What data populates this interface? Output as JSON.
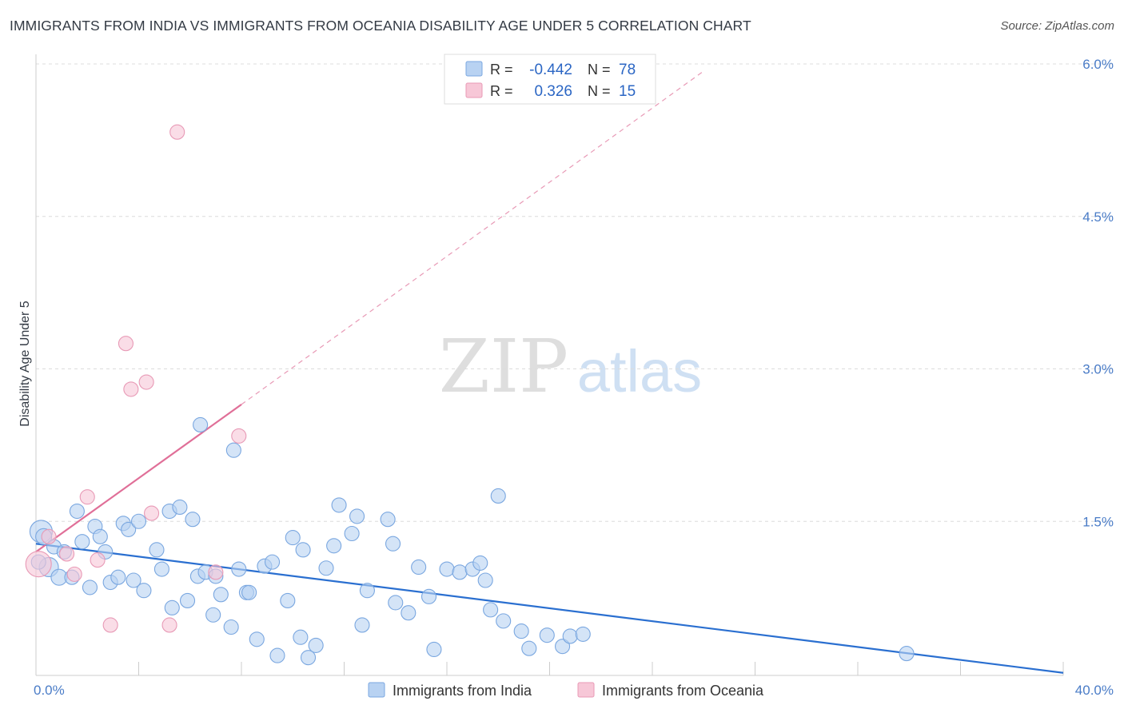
{
  "title": "IMMIGRANTS FROM INDIA VS IMMIGRANTS FROM OCEANIA DISABILITY AGE UNDER 5 CORRELATION CHART",
  "source": "Source: ZipAtlas.com",
  "watermark": {
    "zip": "ZIP",
    "atlas": "atlas"
  },
  "chart_data": {
    "type": "scatter",
    "ylabel": "Disability Age Under 5",
    "xlim": [
      0,
      40
    ],
    "ylim": [
      0,
      6.0
    ],
    "x_tick_labels": [
      {
        "value": 0,
        "label": "0.0%"
      },
      {
        "value": 40,
        "label": "40.0%"
      }
    ],
    "y_tick_labels": [
      {
        "value": 1.5,
        "label": "1.5%"
      },
      {
        "value": 3.0,
        "label": "3.0%"
      },
      {
        "value": 4.5,
        "label": "4.5%"
      },
      {
        "value": 6.0,
        "label": "6.0%"
      }
    ],
    "grid": "horizontal dashed",
    "legend_position": "top-center",
    "series": [
      {
        "name": "Immigrants from India",
        "color": "#7aa7e0",
        "fill": "#b8d2f2",
        "r_label": "R =",
        "r_value": "-0.442",
        "n_label": "N =",
        "n_value": "78",
        "trend": {
          "x0": 0,
          "y0": 1.28,
          "x1": 40,
          "y1": 0.01,
          "color": "#2a6fd0"
        },
        "points": [
          [
            0.2,
            1.4,
            14
          ],
          [
            0.3,
            1.35,
            10
          ],
          [
            0.5,
            1.05,
            12
          ],
          [
            0.7,
            1.25,
            9
          ],
          [
            0.9,
            0.95,
            10
          ],
          [
            1.1,
            1.2,
            9
          ],
          [
            1.4,
            0.95,
            9
          ],
          [
            1.6,
            1.6,
            9
          ],
          [
            1.8,
            1.3,
            9
          ],
          [
            2.1,
            0.85,
            9
          ],
          [
            2.3,
            1.45,
            9
          ],
          [
            2.5,
            1.35,
            9
          ],
          [
            2.7,
            1.2,
            9
          ],
          [
            2.9,
            0.9,
            9
          ],
          [
            3.2,
            0.95,
            9
          ],
          [
            3.4,
            1.48,
            9
          ],
          [
            3.6,
            1.42,
            9
          ],
          [
            3.8,
            0.92,
            9
          ],
          [
            4.0,
            1.5,
            9
          ],
          [
            4.2,
            0.82,
            9
          ],
          [
            4.7,
            1.22,
            9
          ],
          [
            4.9,
            1.03,
            9
          ],
          [
            5.2,
            1.6,
            9
          ],
          [
            5.3,
            0.65,
            9
          ],
          [
            5.6,
            1.64,
            9
          ],
          [
            5.9,
            0.72,
            9
          ],
          [
            6.1,
            1.52,
            9
          ],
          [
            6.3,
            0.96,
            9
          ],
          [
            6.4,
            2.45,
            9
          ],
          [
            6.6,
            1.0,
            9
          ],
          [
            6.9,
            0.58,
            9
          ],
          [
            7.0,
            0.96,
            9
          ],
          [
            7.2,
            0.78,
            9
          ],
          [
            7.6,
            0.46,
            9
          ],
          [
            7.7,
            2.2,
            9
          ],
          [
            7.9,
            1.03,
            9
          ],
          [
            8.2,
            0.8,
            9
          ],
          [
            8.3,
            0.8,
            9
          ],
          [
            8.6,
            0.34,
            9
          ],
          [
            8.9,
            1.06,
            9
          ],
          [
            9.2,
            1.1,
            9
          ],
          [
            9.4,
            0.18,
            9
          ],
          [
            9.8,
            0.72,
            9
          ],
          [
            10.0,
            1.34,
            9
          ],
          [
            10.3,
            0.36,
            9
          ],
          [
            10.4,
            1.22,
            9
          ],
          [
            10.6,
            0.16,
            9
          ],
          [
            10.9,
            0.28,
            9
          ],
          [
            11.3,
            1.04,
            9
          ],
          [
            11.6,
            1.26,
            9
          ],
          [
            11.8,
            1.66,
            9
          ],
          [
            12.3,
            1.38,
            9
          ],
          [
            12.5,
            1.55,
            9
          ],
          [
            12.7,
            0.48,
            9
          ],
          [
            12.9,
            0.82,
            9
          ],
          [
            13.7,
            1.52,
            9
          ],
          [
            13.9,
            1.28,
            9
          ],
          [
            14.0,
            0.7,
            9
          ],
          [
            14.5,
            0.6,
            9
          ],
          [
            14.9,
            1.05,
            9
          ],
          [
            15.3,
            0.76,
            9
          ],
          [
            15.5,
            0.24,
            9
          ],
          [
            16.0,
            1.03,
            9
          ],
          [
            16.5,
            1.0,
            9
          ],
          [
            17.0,
            1.03,
            9
          ],
          [
            17.3,
            1.09,
            9
          ],
          [
            17.5,
            0.92,
            9
          ],
          [
            17.7,
            0.63,
            9
          ],
          [
            18.0,
            1.75,
            9
          ],
          [
            18.2,
            0.52,
            9
          ],
          [
            18.9,
            0.42,
            9
          ],
          [
            19.2,
            0.25,
            9
          ],
          [
            19.9,
            0.38,
            9
          ],
          [
            20.5,
            0.27,
            9
          ],
          [
            20.8,
            0.37,
            9
          ],
          [
            21.3,
            0.39,
            9
          ],
          [
            33.9,
            0.2,
            9
          ],
          [
            0.1,
            1.1,
            9
          ]
        ]
      },
      {
        "name": "Immigrants from Oceania",
        "color": "#e89ab6",
        "fill": "#f7c7d7",
        "r_label": "R =",
        "r_value": "0.326",
        "n_label": "N =",
        "n_value": "15",
        "trend": {
          "x0": 0,
          "y0": 1.2,
          "x1": 8.0,
          "y1": 2.65,
          "color": "#e06f98"
        },
        "trend_extension": {
          "x0": 8.0,
          "y0": 2.65,
          "x1": 26.0,
          "y1": 5.93
        },
        "points": [
          [
            0.1,
            1.08,
            16
          ],
          [
            0.5,
            1.35,
            9
          ],
          [
            1.2,
            1.18,
            9
          ],
          [
            1.5,
            0.98,
            9
          ],
          [
            2.0,
            1.74,
            9
          ],
          [
            2.4,
            1.12,
            9
          ],
          [
            2.9,
            0.48,
            9
          ],
          [
            3.5,
            3.25,
            9
          ],
          [
            3.7,
            2.8,
            9
          ],
          [
            4.3,
            2.87,
            9
          ],
          [
            4.5,
            1.58,
            9
          ],
          [
            5.2,
            0.48,
            9
          ],
          [
            5.5,
            5.33,
            9
          ],
          [
            7.0,
            1.0,
            9
          ],
          [
            7.9,
            2.34,
            9
          ]
        ]
      }
    ]
  }
}
